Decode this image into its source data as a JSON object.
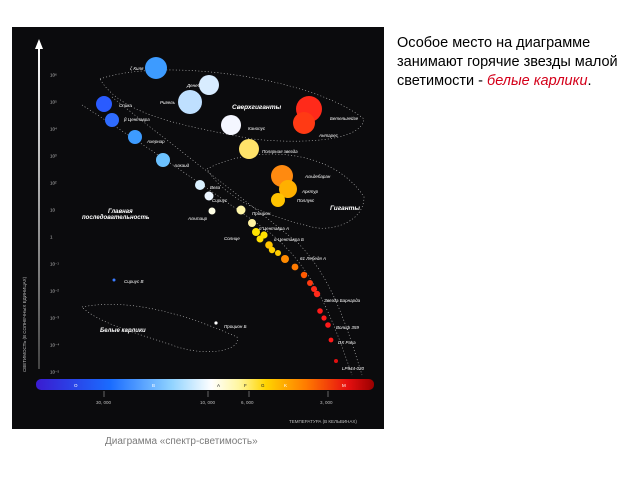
{
  "note": {
    "text": "Особое место на диаграмме занимают горячие звезды малой светимости - ",
    "highlight": "белые карлики",
    "end": "."
  },
  "caption": "Диаграмма «спектр-светимость»",
  "colors": {
    "highlight": "#d4001a",
    "background": "#0b0b0d"
  },
  "diagram": {
    "y_axis_label": "СВЕТИМОСТЬ (В СОЛНЕЧНЫХ ЕДИНИЦАХ)",
    "x_axis_label": "ТЕМПЕРАТУРА (В КЕЛЬВИНАХ)",
    "y_ticks": [
      "10⁶",
      "10⁵",
      "10⁴",
      "10³",
      "10²",
      "10",
      "1",
      "10⁻¹",
      "10⁻²",
      "10⁻³",
      "10⁻⁴",
      "10⁻⁵"
    ],
    "x_ticks": [
      "30, 000",
      "10, 000",
      "6, 000",
      "3, 000"
    ],
    "spectral_classes": [
      "O",
      "B",
      "A",
      "F",
      "G",
      "K",
      "M"
    ],
    "regions": {
      "supergiants": "Сверхгиганты",
      "giants": "Гиганты",
      "main_sequence_1": "Главная",
      "main_sequence_2": "последовательность",
      "white_dwarfs": "Белые карлики"
    },
    "stars": [
      {
        "name": "ζ Киля",
        "color": "#3d9bff"
      },
      {
        "name": "Денеб",
        "color": "#d8ecff"
      },
      {
        "name": "Спика",
        "color": "#2a5bff"
      },
      {
        "name": "Ригель",
        "color": "#bfe0ff"
      },
      {
        "name": "β Центавра",
        "color": "#2f6cff"
      },
      {
        "name": "Бетельгейзе",
        "color": "#ff2a1a"
      },
      {
        "name": "Антарес",
        "color": "#ff3a14"
      },
      {
        "name": "Канопус",
        "color": "#f4f6ff"
      },
      {
        "name": "Ахернар",
        "color": "#3d9bff"
      },
      {
        "name": "Полярная звезда",
        "color": "#ffe36a"
      },
      {
        "name": "Алкаид",
        "color": "#6cc2ff"
      },
      {
        "name": "Альдебаран",
        "color": "#ff8a10"
      },
      {
        "name": "Вега",
        "color": "#d9f0ff"
      },
      {
        "name": "Арктур",
        "color": "#ffb000"
      },
      {
        "name": "Сириус",
        "color": "#ecf6ff"
      },
      {
        "name": "Поллукс",
        "color": "#ffc300"
      },
      {
        "name": "Альтаир",
        "color": "#ffffe6"
      },
      {
        "name": "Процион",
        "color": "#fff6a8"
      },
      {
        "name": "α Центавра А",
        "color": "#ffe400"
      },
      {
        "name": "Солнце",
        "color": "#ffe000"
      },
      {
        "name": "α Центавра Б",
        "color": "#ffc400"
      },
      {
        "name": "61 Лебедя А",
        "color": "#ff8a00"
      },
      {
        "name": "Звезда Барнарда",
        "color": "#ff2a1a"
      },
      {
        "name": "Сириус В",
        "color": "#3a7bff"
      },
      {
        "name": "Вольф 359",
        "color": "#ff1a1a"
      },
      {
        "name": "Процион Б",
        "color": "#ffffff"
      },
      {
        "name": "DX Рака",
        "color": "#ff1a1a"
      },
      {
        "name": "LP944-020",
        "color": "#e01010"
      }
    ]
  }
}
